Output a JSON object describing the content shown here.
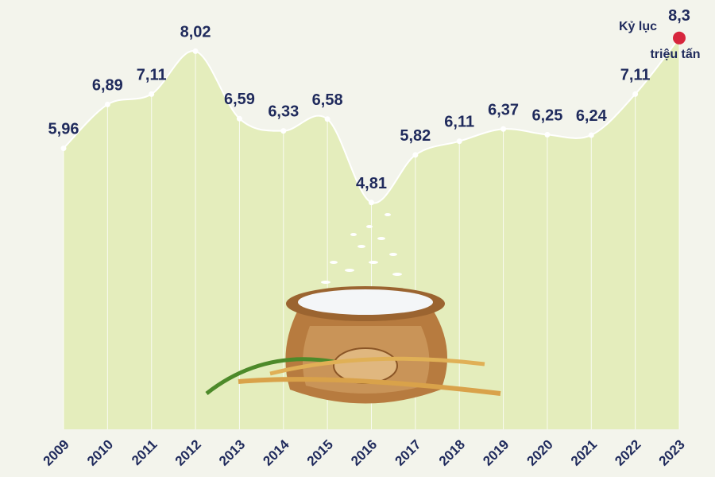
{
  "chart_data": {
    "type": "area",
    "categories": [
      "2009",
      "2010",
      "2011",
      "2012",
      "2013",
      "2014",
      "2015",
      "2016",
      "2017",
      "2018",
      "2019",
      "2020",
      "2021",
      "2022",
      "2023"
    ],
    "values": [
      5.96,
      6.89,
      7.11,
      8.02,
      6.59,
      6.33,
      6.58,
      4.81,
      5.82,
      6.11,
      6.37,
      6.25,
      6.24,
      7.11,
      8.3
    ],
    "value_labels": [
      "5,96",
      "6,89",
      "7,11",
      "8,02",
      "6,59",
      "6,33",
      "6,58",
      "4,81",
      "5,82",
      "6,11",
      "6,37",
      "6,25",
      "6,24",
      "7,11",
      "8,3"
    ],
    "annotations": [
      "Kỷ lục",
      "triệu tấn"
    ],
    "color": "#e4edbc",
    "line_color": "#ffffff",
    "highlight_color": "#d7263d",
    "label_color": "#1f2a5c"
  }
}
